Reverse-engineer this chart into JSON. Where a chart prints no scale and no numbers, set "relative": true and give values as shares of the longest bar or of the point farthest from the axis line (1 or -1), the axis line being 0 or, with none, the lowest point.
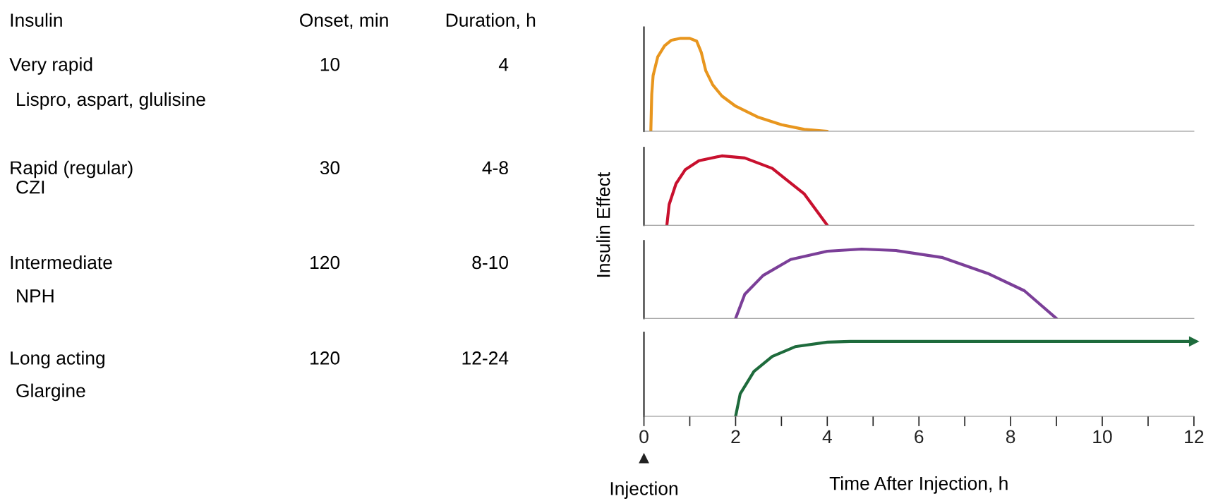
{
  "chart_data": [
    {
      "type": "other",
      "annotations": [
        "Insulin",
        "Onset, min",
        "Duration, h",
        "Very rapid",
        "Lispro, aspart, glulisine",
        "10",
        "4",
        "Rapid (regular)",
        "CZI",
        "30",
        "4-8",
        "Intermediate",
        "NPH",
        "120",
        "8-10",
        "Long acting",
        "Glargine",
        "120",
        "12-24"
      ]
    },
    {
      "type": "line",
      "relative": true,
      "xlim": [
        0,
        12
      ],
      "tick_labels": false,
      "series": [
        {
          "color": "#e8961e",
          "x": [
            0.15,
            0.17,
            0.2,
            0.3,
            0.45,
            0.6,
            0.8,
            1.0,
            1.15,
            1.25,
            1.35,
            1.5,
            1.7,
            2.0,
            2.5,
            3.0,
            3.5,
            4.0
          ],
          "values": [
            0,
            0.4,
            0.6,
            0.8,
            0.92,
            0.98,
            1.0,
            1.0,
            0.97,
            0.85,
            0.65,
            0.5,
            0.38,
            0.27,
            0.15,
            0.07,
            0.02,
            0
          ]
        }
      ]
    },
    {
      "type": "line",
      "relative": true,
      "xlim": [
        0,
        12
      ],
      "tick_labels": false,
      "ylabel": "Insulin Effect",
      "series": [
        {
          "color": "#c8102e",
          "x": [
            0.5,
            0.55,
            0.7,
            0.9,
            1.2,
            1.7,
            2.2,
            2.8,
            3.5,
            4.0
          ],
          "values": [
            0,
            0.3,
            0.6,
            0.8,
            0.93,
            1.0,
            0.97,
            0.82,
            0.45,
            0
          ]
        }
      ]
    },
    {
      "type": "line",
      "relative": true,
      "xlim": [
        0,
        12
      ],
      "tick_labels": false,
      "series": [
        {
          "color": "#7b3f98",
          "x": [
            2,
            2.2,
            2.6,
            3.2,
            4,
            4.75,
            5.5,
            6.5,
            7.5,
            8.3,
            9
          ],
          "values": [
            0,
            0.35,
            0.62,
            0.85,
            0.97,
            1,
            0.98,
            0.88,
            0.65,
            0.4,
            0
          ]
        }
      ]
    },
    {
      "type": "line",
      "relative": true,
      "xlim": [
        0,
        12
      ],
      "tick_labels": "x",
      "xlabel": "Time After Injection, h",
      "xticks": [
        0,
        {
          "value": 1,
          "label": null
        },
        2,
        {
          "value": 3,
          "label": null
        },
        4,
        {
          "value": 5,
          "label": null
        },
        6,
        {
          "value": 7,
          "label": null
        },
        8,
        {
          "value": 9,
          "label": null
        },
        10,
        {
          "value": 11,
          "label": null
        },
        12
      ],
      "annotations": [
        "Injection"
      ],
      "series": [
        {
          "color": "#1e6b3c",
          "x": [
            2,
            2.1,
            2.4,
            2.8,
            3.3,
            4,
            4.5,
            12
          ],
          "values": [
            0,
            0.3,
            0.6,
            0.8,
            0.93,
            0.99,
            1,
            1
          ]
        }
      ]
    }
  ]
}
